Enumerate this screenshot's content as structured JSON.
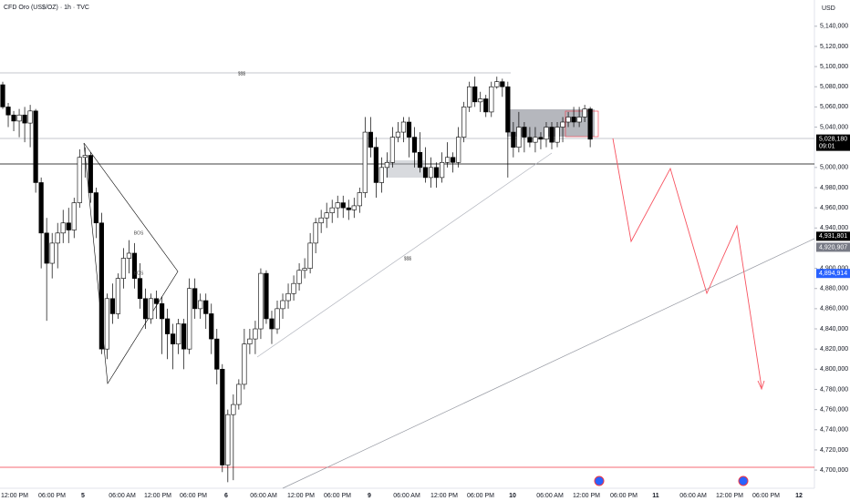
{
  "chart_data": {
    "type": "candlestick",
    "title": "CFD Oro (US$/OZ) · 1h · TVC",
    "currency": "USD",
    "ylim": [
      4682000,
      5166000
    ],
    "yticks": [
      {
        "value": 5140000,
        "label": "5,140,000"
      },
      {
        "value": 5120000,
        "label": "5,120,000"
      },
      {
        "value": 5100000,
        "label": "5,100,000"
      },
      {
        "value": 5080000,
        "label": "5,080,000"
      },
      {
        "value": 5060000,
        "label": "5,060,000"
      },
      {
        "value": 5040000,
        "label": "5,040,000"
      },
      {
        "value": 5000000,
        "label": "5,000,000"
      },
      {
        "value": 4980000,
        "label": "4,980,000"
      },
      {
        "value": 4960000,
        "label": "4,960,000"
      },
      {
        "value": 4940000,
        "label": "4,940,000"
      },
      {
        "value": 4900000,
        "label": "4,900,000"
      },
      {
        "value": 4880000,
        "label": "4,880,000"
      },
      {
        "value": 4860000,
        "label": "4,860,000"
      },
      {
        "value": 4840000,
        "label": "4,840,000"
      },
      {
        "value": 4820000,
        "label": "4,820,000"
      },
      {
        "value": 4800000,
        "label": "4,800,000"
      },
      {
        "value": 4780000,
        "label": "4,780,000"
      },
      {
        "value": 4760000,
        "label": "4,760,000"
      },
      {
        "value": 4740000,
        "label": "4,740,000"
      },
      {
        "value": 4720000,
        "label": "4,720,000"
      },
      {
        "value": 4700000,
        "label": "4,700,000"
      }
    ],
    "xticks": [
      "12:00 PM",
      "06:00 PM",
      "5",
      "06:00 AM",
      "12:00 PM",
      "06:00 PM",
      "6",
      "06:00 AM",
      "12:00 PM",
      "06:00 PM",
      "9",
      "06:00 AM",
      "12:00 PM",
      "06:00 PM",
      "10",
      "06:00 AM",
      "12:00 PM",
      "06:00 PM",
      "11",
      "06:00 AM",
      "12:00 PM",
      "06:00 PM",
      "12"
    ],
    "up_color": "#ffffff",
    "down_color": "#000000",
    "candles": [
      [
        5082000,
        5085000,
        5058000,
        5060000
      ],
      [
        5060000,
        5064000,
        5040000,
        5052000
      ],
      [
        5052000,
        5056000,
        5036000,
        5046000
      ],
      [
        5046000,
        5058000,
        5030000,
        5052000
      ],
      [
        5052000,
        5060000,
        5025000,
        5044000
      ],
      [
        5044000,
        5062000,
        5020000,
        5056000
      ],
      [
        5056000,
        5058000,
        4975000,
        4985000
      ],
      [
        4985000,
        4990000,
        4900000,
        4935000
      ],
      [
        4935000,
        4950000,
        4848000,
        4905000
      ],
      [
        4905000,
        4935000,
        4890000,
        4925000
      ],
      [
        4925000,
        4945000,
        4900000,
        4935000
      ],
      [
        4935000,
        4958000,
        4925000,
        4945000
      ],
      [
        4945000,
        4960000,
        4925000,
        4938000
      ],
      [
        4938000,
        4970000,
        4930000,
        4965000
      ],
      [
        4965000,
        5018000,
        4960000,
        5010000
      ],
      [
        5010000,
        5020000,
        4990000,
        5012000
      ],
      [
        5012000,
        5015000,
        4965000,
        4975000
      ],
      [
        4975000,
        4980000,
        4930000,
        4945000
      ],
      [
        4945000,
        4955000,
        4815000,
        4820000
      ],
      [
        4820000,
        4875000,
        4810000,
        4870000
      ],
      [
        4870000,
        4885000,
        4845000,
        4855000
      ],
      [
        4855000,
        4895000,
        4850000,
        4890000
      ],
      [
        4890000,
        4920000,
        4880000,
        4910000
      ],
      [
        4910000,
        4928000,
        4895000,
        4915000
      ],
      [
        4915000,
        4925000,
        4880000,
        4890000
      ],
      [
        4890000,
        4905000,
        4860000,
        4870000
      ],
      [
        4870000,
        4880000,
        4840000,
        4850000
      ],
      [
        4850000,
        4875000,
        4845000,
        4870000
      ],
      [
        4870000,
        4878000,
        4850000,
        4865000
      ],
      [
        4865000,
        4872000,
        4815000,
        4850000
      ],
      [
        4850000,
        4860000,
        4810000,
        4835000
      ],
      [
        4835000,
        4845000,
        4800000,
        4825000
      ],
      [
        4825000,
        4850000,
        4815000,
        4845000
      ],
      [
        4845000,
        4850000,
        4800000,
        4820000
      ],
      [
        4820000,
        4890000,
        4815000,
        4880000
      ],
      [
        4880000,
        4890000,
        4850000,
        4860000
      ],
      [
        4860000,
        4875000,
        4850000,
        4868000
      ],
      [
        4868000,
        4875000,
        4840000,
        4855000
      ],
      [
        4855000,
        4865000,
        4815000,
        4830000
      ],
      [
        4830000,
        4840000,
        4785000,
        4800000
      ],
      [
        4800000,
        4805000,
        4698000,
        4705000
      ],
      [
        4705000,
        4760000,
        4688000,
        4755000
      ],
      [
        4755000,
        4775000,
        4690000,
        4765000
      ],
      [
        4765000,
        4790000,
        4760000,
        4785000
      ],
      [
        4785000,
        4840000,
        4780000,
        4825000
      ],
      [
        4825000,
        4840000,
        4815000,
        4830000
      ],
      [
        4830000,
        4848000,
        4815000,
        4840000
      ],
      [
        4840000,
        4900000,
        4830000,
        4895000
      ],
      [
        4895000,
        4898000,
        4845000,
        4850000
      ],
      [
        4850000,
        4858000,
        4825000,
        4840000
      ],
      [
        4840000,
        4868000,
        4835000,
        4860000
      ],
      [
        4860000,
        4875000,
        4850000,
        4868000
      ],
      [
        4868000,
        4885000,
        4860000,
        4875000
      ],
      [
        4875000,
        4893000,
        4868000,
        4885000
      ],
      [
        4885000,
        4905000,
        4878000,
        4898000
      ],
      [
        4898000,
        4910000,
        4890000,
        4900000
      ],
      [
        4900000,
        4935000,
        4895000,
        4925000
      ],
      [
        4925000,
        4950000,
        4915000,
        4945000
      ],
      [
        4945000,
        4958000,
        4935000,
        4950000
      ],
      [
        4950000,
        4965000,
        4940000,
        4955000
      ],
      [
        4955000,
        4968000,
        4945000,
        4960000
      ],
      [
        4960000,
        4972000,
        4950000,
        4965000
      ],
      [
        4965000,
        4972000,
        4950000,
        4960000
      ],
      [
        4960000,
        4968000,
        4948000,
        4958000
      ],
      [
        4958000,
        4970000,
        4950000,
        4962000
      ],
      [
        4962000,
        4980000,
        4955000,
        4975000
      ],
      [
        4975000,
        5050000,
        4970000,
        5035000
      ],
      [
        5035000,
        5050000,
        5010000,
        5020000
      ],
      [
        5020000,
        5030000,
        4970000,
        4985000
      ],
      [
        4985000,
        5010000,
        4975000,
        5000000
      ],
      [
        5000000,
        5015000,
        4990000,
        5005000
      ],
      [
        5005000,
        5040000,
        5000000,
        5030000
      ],
      [
        5030000,
        5045000,
        5025000,
        5035000
      ],
      [
        5035000,
        5050000,
        5025000,
        5045000
      ],
      [
        5045000,
        5050000,
        5010000,
        5030000
      ],
      [
        5030000,
        5040000,
        5000000,
        5015000
      ],
      [
        5015000,
        5035000,
        4995000,
        5000000
      ],
      [
        5000000,
        5020000,
        4985000,
        4990000
      ],
      [
        4990000,
        5010000,
        4980000,
        5000000
      ],
      [
        5000000,
        5005000,
        4980000,
        4990000
      ],
      [
        4990000,
        5015000,
        4985000,
        5005000
      ],
      [
        5005000,
        5025000,
        5000000,
        5010000
      ],
      [
        5010000,
        5015000,
        4995000,
        5005000
      ],
      [
        5005000,
        5040000,
        5000000,
        5030000
      ],
      [
        5030000,
        5065000,
        5025000,
        5060000
      ],
      [
        5060000,
        5085000,
        5055000,
        5080000
      ],
      [
        5080000,
        5090000,
        5060000,
        5065000
      ],
      [
        5065000,
        5075000,
        5055000,
        5068000
      ],
      [
        5068000,
        5072000,
        5050000,
        5055000
      ],
      [
        5055000,
        5085000,
        5050000,
        5080000
      ],
      [
        5080000,
        5090000,
        5078000,
        5085000
      ],
      [
        5085000,
        5088000,
        5070000,
        5080000
      ],
      [
        5080000,
        5085000,
        4990000,
        5035000
      ],
      [
        5035000,
        5045000,
        5010000,
        5020000
      ],
      [
        5020000,
        5055000,
        5015000,
        5040000
      ],
      [
        5040000,
        5045000,
        5015000,
        5030000
      ],
      [
        5030000,
        5040000,
        5020000,
        5025000
      ],
      [
        5025000,
        5040000,
        5015000,
        5030000
      ],
      [
        5030000,
        5035000,
        5018000,
        5028000
      ],
      [
        5028000,
        5045000,
        5020000,
        5040000
      ],
      [
        5040000,
        5045000,
        5018000,
        5025000
      ],
      [
        5025000,
        5045000,
        5020000,
        5040000
      ],
      [
        5040000,
        5050000,
        5025000,
        5045000
      ],
      [
        5045000,
        5055000,
        5040000,
        5050000
      ],
      [
        5050000,
        5060000,
        5040000,
        5045000
      ],
      [
        5045000,
        5060000,
        5040000,
        5050000
      ],
      [
        5050000,
        5062000,
        5045000,
        5058000
      ],
      [
        5058000,
        5060000,
        5020000,
        5028000
      ]
    ],
    "price_tags": [
      {
        "value": 5028180,
        "label": "5,028,180",
        "color": "#000000"
      },
      {
        "value": 4931801,
        "label": "4,931,801",
        "color": "#000000"
      },
      {
        "value": 4920907,
        "label": "4,920,907",
        "color": "#787b86"
      },
      {
        "value": 4894914,
        "label": "4,894,914",
        "color": "#2962ff"
      }
    ],
    "countdown": "09:01",
    "annotations": [
      "$$$",
      "$$$",
      "BOS",
      "BOS"
    ]
  }
}
